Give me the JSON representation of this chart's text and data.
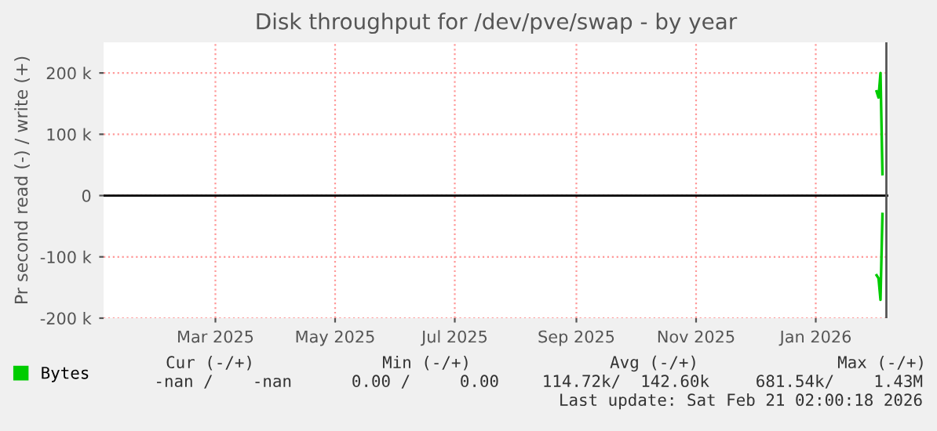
{
  "chart_data": {
    "type": "line",
    "title": "Disk throughput for /dev/pve/swap - by year",
    "ylabel": "Pr second read (-) / write (+)",
    "series": [
      {
        "name": "Bytes",
        "color": "#00cc00",
        "x": [
          "2026-02-16",
          "2026-02-17",
          "2026-02-18",
          "2026-02-19"
        ],
        "values": [
          170000,
          160000,
          200000,
          35000
        ]
      },
      {
        "color": "#00cc00",
        "x": [
          "2026-02-16",
          "2026-02-17",
          "2026-02-18",
          "2026-02-19"
        ],
        "values": [
          -130000,
          -135000,
          -170000,
          -30000
        ]
      }
    ],
    "xlim": [
      "2025-01-18",
      "2026-02-22"
    ],
    "xticks": [
      {
        "value": "2025-03-16",
        "label": "Mar 2025"
      },
      {
        "value": "2025-05-16",
        "label": "May 2025"
      },
      {
        "value": "2025-07-16",
        "label": "Jul 2025"
      },
      {
        "value": "2025-09-16",
        "label": "Sep 2025"
      },
      {
        "value": "2025-11-16",
        "label": "Nov 2025"
      },
      {
        "value": "2026-01-16",
        "label": "Jan 2026"
      }
    ],
    "ylim": [
      -200000,
      250000
    ],
    "yticks": [
      {
        "value": -200000,
        "label": "-200 k"
      },
      {
        "value": -100000,
        "label": "-100 k"
      },
      {
        "value": 0,
        "label": "0"
      },
      {
        "value": 100000,
        "label": "100 k"
      },
      {
        "value": 200000,
        "label": "200 k"
      }
    ],
    "ref_lines": [
      {
        "axis": "y",
        "value": 0,
        "color": "#000000"
      },
      {
        "axis": "x",
        "value": "2026-02-21",
        "color": "#555555"
      }
    ],
    "grid": true,
    "legend": "bottom left",
    "marker": "none",
    "line_style": "solid",
    "annotations": [
      "Cur (-/+)",
      "Min (-/+)",
      "Avg (-/+)",
      "Max (-/+)",
      "-nan /    -nan",
      "0.00 /     0.00",
      "114.72k/  142.60k",
      "681.54k/    1.43M",
      "Last update: Sat Feb 21 02:00:18 2026"
    ]
  }
}
